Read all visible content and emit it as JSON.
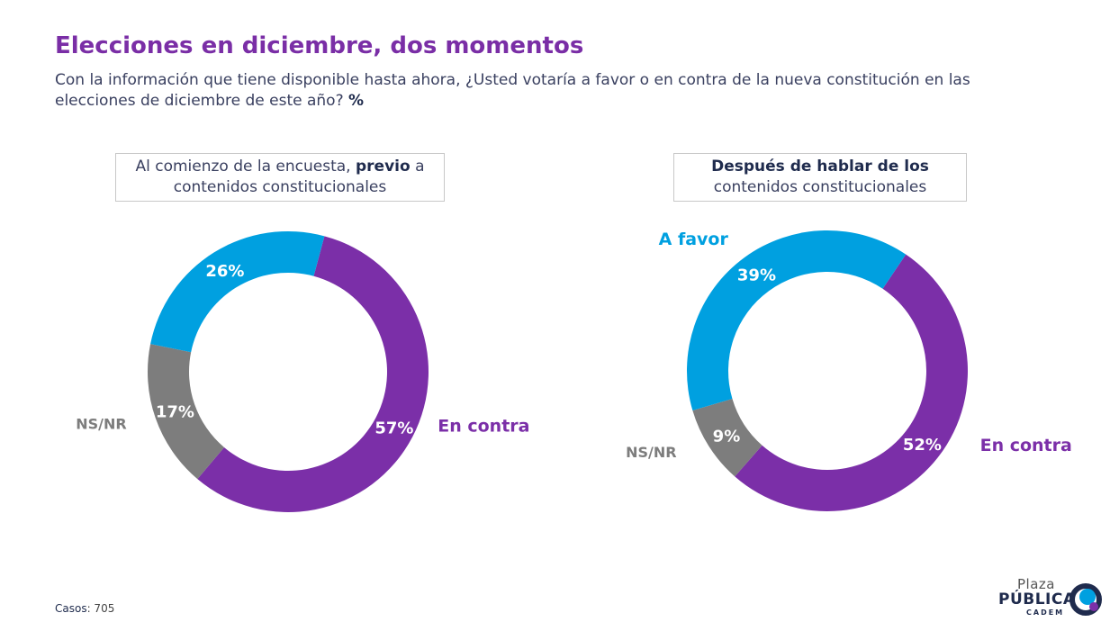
{
  "header": {
    "title": "Elecciones en diciembre, dos momentos",
    "subtitle_text": "Con la información que tiene disponible hasta ahora, ¿Usted votaría a favor o en contra de la nueva constitución en las elecciones de diciembre de este año?",
    "subtitle_unit": "%"
  },
  "chart_data": [
    {
      "type": "pie",
      "title_parts": [
        "Al comienzo de la encuesta,",
        "previo",
        "a contenidos constitucionales"
      ],
      "slices": [
        {
          "label": "En contra",
          "value": 57,
          "value_label": "57%",
          "color": "#7b2fa8",
          "show_label": true
        },
        {
          "label": "NS/NR",
          "value": 17,
          "value_label": "17%",
          "color": "#7d7d7d",
          "show_label": true
        },
        {
          "label": "",
          "value": 26,
          "value_label": "26%",
          "color": "#00a0e0",
          "show_label": false
        }
      ]
    },
    {
      "type": "pie",
      "title_parts": [
        "Después de hablar de los",
        "contenidos constitucionales"
      ],
      "slices": [
        {
          "label": "En contra",
          "value": 52,
          "value_label": "52%",
          "color": "#7b2fa8",
          "show_label": true
        },
        {
          "label": "NS/NR",
          "value": 9,
          "value_label": "9%",
          "color": "#7d7d7d",
          "show_label": true
        },
        {
          "label": "A favor",
          "value": 39,
          "value_label": "39%",
          "color": "#00a0e0",
          "show_label": true
        }
      ]
    }
  ],
  "footer": {
    "cases_label": "Casos",
    "cases_value": ": 705"
  },
  "logo": {
    "line1": "Plaza",
    "line2": "PÚBLICA",
    "line3": "CADEM"
  }
}
